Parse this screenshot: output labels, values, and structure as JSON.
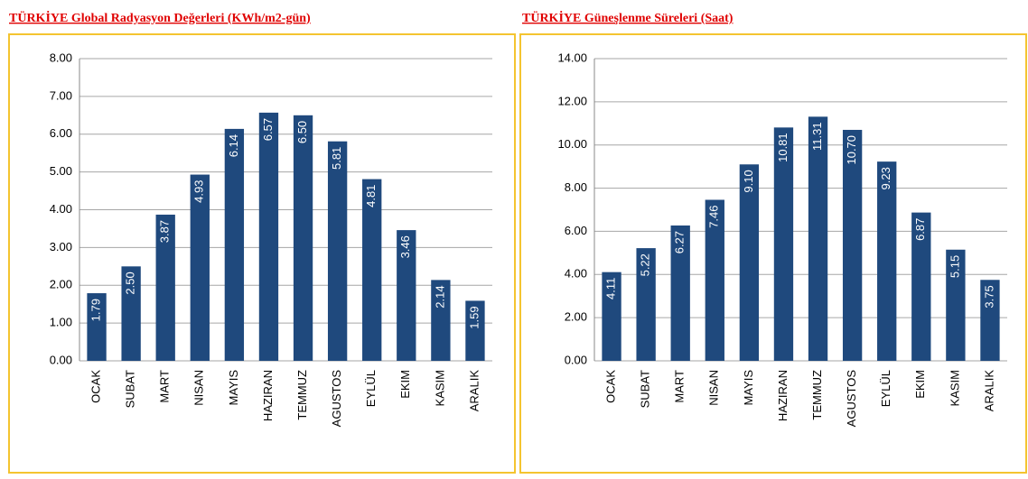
{
  "chart_data": [
    {
      "type": "bar",
      "title": "TÜRKİYE Global Radyasyon Değerleri (KWh/m2-gün)",
      "categories": [
        "OCAK",
        "SUBAT",
        "MART",
        "NISAN",
        "MAYIS",
        "HAZIRAN",
        "TEMMUZ",
        "AGUSTOS",
        "EYLÜL",
        "EKIM",
        "KASIM",
        "ARALIK"
      ],
      "values": [
        1.79,
        2.5,
        3.87,
        4.93,
        6.14,
        6.57,
        6.5,
        5.81,
        4.81,
        3.46,
        2.14,
        1.59
      ],
      "value_labels": [
        "1.79",
        "2.50",
        "3.87",
        "4.93",
        "6.14",
        "6.57",
        "6.50",
        "5.81",
        "4.81",
        "3.46",
        "2.14",
        "1.59"
      ],
      "color": "#1f497d",
      "ylim": [
        0,
        8
      ],
      "yticks": [
        {
          "value": 0,
          "label": "0.00"
        },
        {
          "value": 1,
          "label": "1.00"
        },
        {
          "value": 2,
          "label": "2.00"
        },
        {
          "value": 3,
          "label": "3.00"
        },
        {
          "value": 4,
          "label": "4.00"
        },
        {
          "value": 5,
          "label": "5.00"
        },
        {
          "value": 6,
          "label": "6.00"
        },
        {
          "value": 7,
          "label": "7.00"
        },
        {
          "value": 8,
          "label": "8.00"
        }
      ],
      "grid": true
    },
    {
      "type": "bar",
      "title": "TÜRKİYE Güneşlenme Süreleri (Saat)",
      "categories": [
        "OCAK",
        "SUBAT",
        "MART",
        "NISAN",
        "MAYIS",
        "HAZIRAN",
        "TEMMUZ",
        "AGUSTOS",
        "EYLÜL",
        "EKIM",
        "KASIM",
        "ARALIK"
      ],
      "values": [
        4.11,
        5.22,
        6.27,
        7.46,
        9.1,
        10.81,
        11.31,
        10.7,
        9.23,
        6.87,
        5.15,
        3.75
      ],
      "value_labels": [
        "4.11",
        "5.22",
        "6.27",
        "7.46",
        "9.10",
        "10.81",
        "11.31",
        "10.70",
        "9.23",
        "6.87",
        "5.15",
        "3.75"
      ],
      "color": "#1f497d",
      "ylim": [
        0,
        14
      ],
      "yticks": [
        {
          "value": 0,
          "label": "0.00"
        },
        {
          "value": 2,
          "label": "2.00"
        },
        {
          "value": 4,
          "label": "4.00"
        },
        {
          "value": 6,
          "label": "6.00"
        },
        {
          "value": 8,
          "label": "8.00"
        },
        {
          "value": 10,
          "label": "10.00"
        },
        {
          "value": 12,
          "label": "12.00"
        },
        {
          "value": 14,
          "label": "14.00"
        }
      ],
      "grid": true
    }
  ]
}
